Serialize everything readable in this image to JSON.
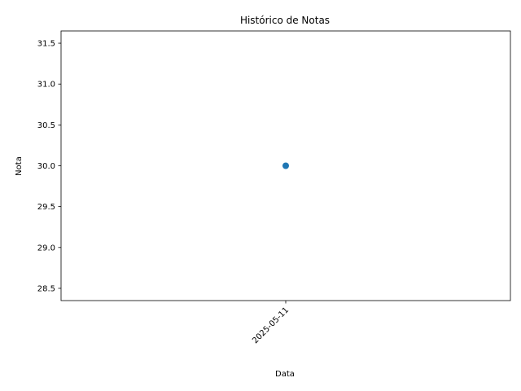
{
  "chart_data": {
    "type": "line",
    "title": "Histórico de Notas",
    "xlabel": "Data",
    "ylabel": "Nota",
    "x": [
      "2025-05-11"
    ],
    "series": [
      {
        "values": [
          30.0
        ]
      }
    ],
    "xticks": [
      "2025-05-11"
    ],
    "yticks": [
      "28.5",
      "29.0",
      "29.5",
      "30.0",
      "30.5",
      "31.0",
      "31.5"
    ],
    "ytick_values": [
      28.5,
      29.0,
      29.5,
      30.0,
      30.5,
      31.0,
      31.5
    ],
    "ylim": [
      28.35,
      31.65
    ],
    "xtick_rotation": 45,
    "grid": false,
    "marker": "circle",
    "series_color": "#1f77b4"
  }
}
